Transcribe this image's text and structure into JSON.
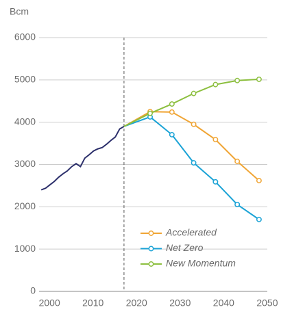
{
  "chart_data": {
    "type": "line",
    "y_label": "Bcm",
    "xlim": [
      1999.5,
      2051.9
    ],
    "ylim": [
      0,
      6000
    ],
    "xticks": [
      2000,
      2010,
      2020,
      2030,
      2040,
      2050
    ],
    "yticks": [
      0,
      1000,
      2000,
      3000,
      4000,
      5000,
      6000
    ],
    "grid": true,
    "reference_line_x": 2019,
    "legend": "lower-center",
    "series": [
      {
        "color": "#2c2f6b",
        "x": [
          2000,
          2001,
          2002,
          2003,
          2004,
          2005,
          2006,
          2007,
          2008,
          2009,
          2010,
          2011,
          2012,
          2013,
          2014,
          2015,
          2016,
          2017,
          2018,
          2019
        ],
        "values": [
          2400,
          2440,
          2520,
          2600,
          2700,
          2780,
          2850,
          2950,
          3020,
          2950,
          3150,
          3230,
          3320,
          3370,
          3400,
          3480,
          3570,
          3650,
          3840,
          3900
        ]
      },
      {
        "name": "Accelerated",
        "color": "#f0a535",
        "markers": true,
        "x": [
          2019,
          2025,
          2030,
          2035,
          2040,
          2045,
          2050
        ],
        "values": [
          3900,
          4250,
          4240,
          3950,
          3590,
          3075,
          2620
        ]
      },
      {
        "name": "Net Zero",
        "color": "#1ba3d6",
        "markers": true,
        "x": [
          2019,
          2025,
          2030,
          2035,
          2040,
          2045,
          2050
        ],
        "values": [
          3900,
          4125,
          3705,
          3040,
          2590,
          2055,
          1700
        ]
      },
      {
        "name": "New Momentum",
        "color": "#8cbf3f",
        "markers": true,
        "x": [
          2019,
          2025,
          2030,
          2035,
          2040,
          2045,
          2050
        ],
        "values": [
          3900,
          4210,
          4430,
          4680,
          4890,
          4985,
          5015
        ]
      }
    ]
  }
}
